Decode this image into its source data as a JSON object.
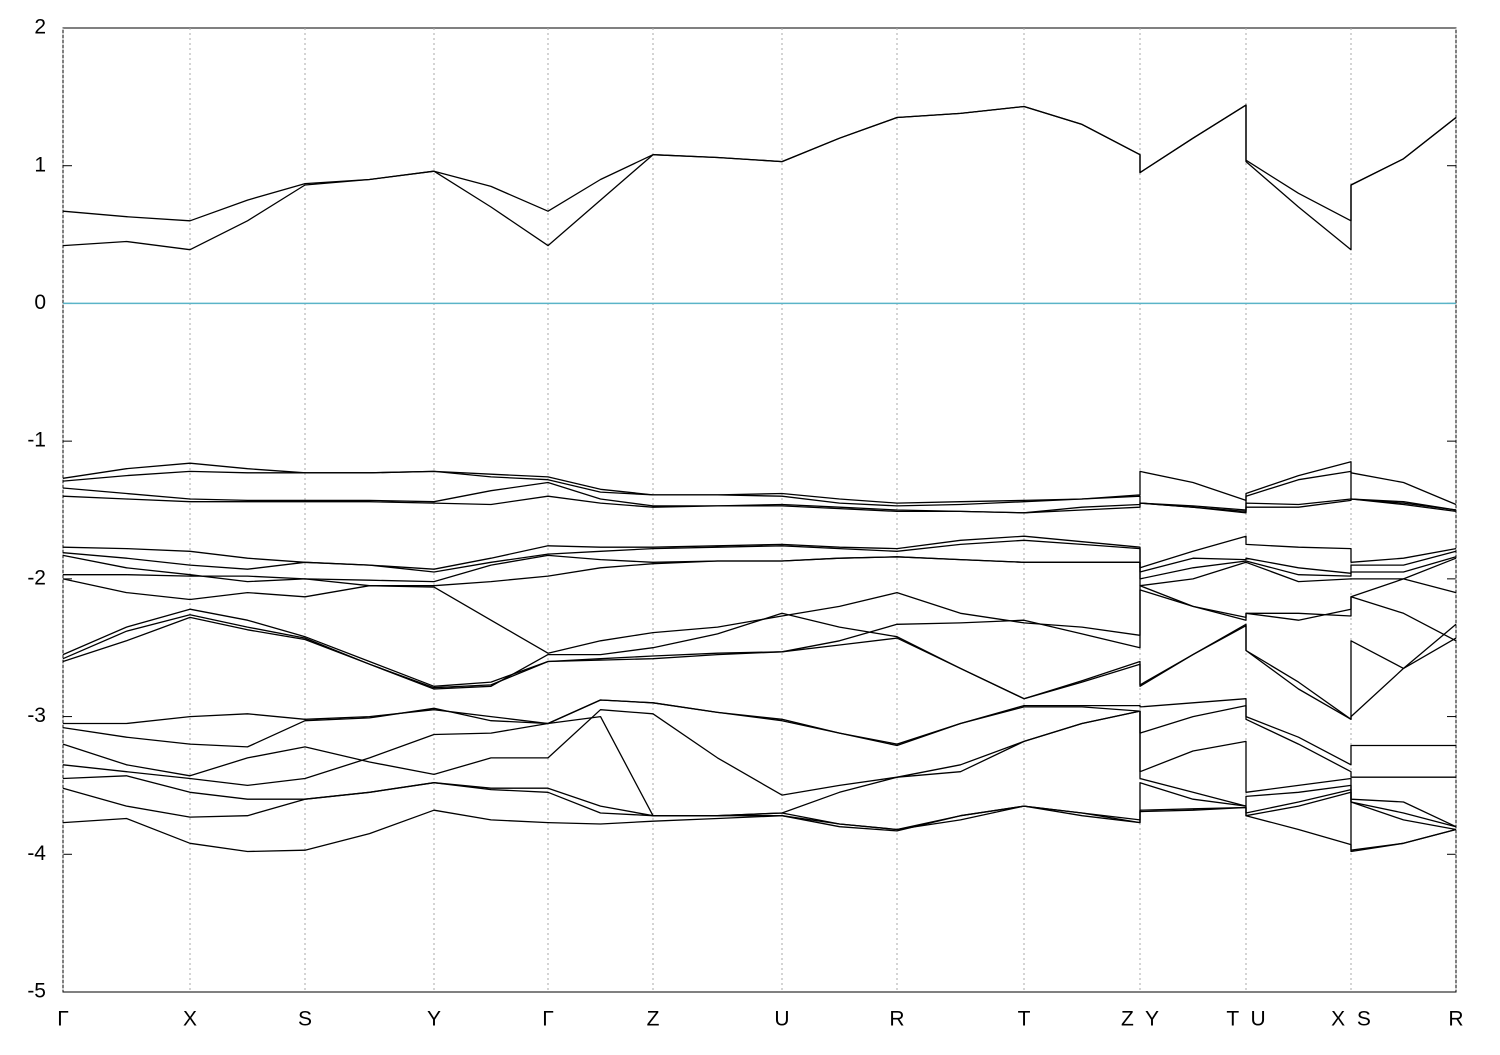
{
  "chart_data": {
    "type": "line",
    "xlim": [
      0,
      13.93
    ],
    "ylim": [
      -5,
      2
    ],
    "yticks": [
      -5,
      -4,
      -3,
      -2,
      -1,
      0,
      1,
      2
    ],
    "xticks": [
      {
        "value": 0,
        "label": "Γ"
      },
      {
        "value": 1.27,
        "label": "X"
      },
      {
        "value": 2.42,
        "label": "S"
      },
      {
        "value": 3.71,
        "label": "Y"
      },
      {
        "value": 4.85,
        "label": "Γ"
      },
      {
        "value": 5.9,
        "label": "Z"
      },
      {
        "value": 7.19,
        "label": "U"
      },
      {
        "value": 8.34,
        "label": "R"
      },
      {
        "value": 9.61,
        "label": "T"
      },
      {
        "value": 10.77,
        "label": "Z  Y"
      },
      {
        "value": 11.83,
        "label": "T  U"
      },
      {
        "value": 12.88,
        "label": "X  S"
      },
      {
        "value": 13.93,
        "label": "R"
      }
    ],
    "grid": "x",
    "hlines": [
      {
        "y": 0,
        "color": "#5ab4c8"
      }
    ],
    "x": [
      0,
      0.635,
      1.27,
      1.845,
      2.42,
      3.065,
      3.71,
      4.28,
      4.85,
      5.375,
      5.9,
      6.545,
      7.19,
      7.765,
      8.34,
      8.975,
      9.61,
      10.19,
      10.77,
      10.77,
      11.3,
      11.83,
      11.83,
      12.355,
      12.88,
      12.88,
      13.405,
      13.93
    ],
    "series": [
      {
        "color": "#000000",
        "values": [
          0.67,
          0.63,
          0.6,
          0.75,
          0.87,
          0.9,
          0.96,
          0.85,
          0.67,
          0.9,
          1.08,
          1.06,
          1.03,
          1.2,
          1.35,
          1.38,
          1.43,
          1.3,
          1.08,
          0.95,
          1.2,
          1.44,
          1.04,
          0.8,
          0.6,
          0.86,
          1.05,
          1.35
        ]
      },
      {
        "color": "#000000",
        "values": [
          0.42,
          0.45,
          0.39,
          0.6,
          0.86,
          0.9,
          0.96,
          0.7,
          0.42,
          0.75,
          1.08,
          1.06,
          1.03,
          1.2,
          1.35,
          1.38,
          1.43,
          1.3,
          1.08,
          0.95,
          1.2,
          1.44,
          1.03,
          0.7,
          0.39,
          0.86,
          1.05,
          1.35
        ]
      },
      {
        "color": "#000000",
        "values": [
          -1.27,
          -1.2,
          -1.16,
          -1.2,
          -1.23,
          -1.23,
          -1.22,
          -1.24,
          -1.26,
          -1.35,
          -1.39,
          -1.39,
          -1.38,
          -1.42,
          -1.45,
          -1.44,
          -1.43,
          -1.42,
          -1.39,
          -1.22,
          -1.3,
          -1.43,
          -1.38,
          -1.25,
          -1.15,
          -1.23,
          -1.3,
          -1.46
        ]
      },
      {
        "color": "#000000",
        "values": [
          -1.29,
          -1.25,
          -1.22,
          -1.23,
          -1.23,
          -1.23,
          -1.22,
          -1.26,
          -1.28,
          -1.37,
          -1.39,
          -1.39,
          -1.4,
          -1.45,
          -1.47,
          -1.46,
          -1.44,
          -1.42,
          -1.4,
          -1.45,
          -1.47,
          -1.5,
          -1.4,
          -1.28,
          -1.22,
          -1.42,
          -1.45,
          -1.5
        ]
      },
      {
        "color": "#000000",
        "values": [
          -1.34,
          -1.38,
          -1.42,
          -1.43,
          -1.43,
          -1.43,
          -1.44,
          -1.36,
          -1.3,
          -1.42,
          -1.47,
          -1.47,
          -1.46,
          -1.48,
          -1.5,
          -1.51,
          -1.52,
          -1.48,
          -1.46,
          -1.45,
          -1.48,
          -1.51,
          -1.45,
          -1.46,
          -1.42,
          -1.42,
          -1.44,
          -1.5
        ]
      },
      {
        "color": "#000000",
        "values": [
          -1.4,
          -1.42,
          -1.44,
          -1.44,
          -1.44,
          -1.44,
          -1.45,
          -1.46,
          -1.4,
          -1.45,
          -1.48,
          -1.47,
          -1.47,
          -1.49,
          -1.51,
          -1.51,
          -1.52,
          -1.5,
          -1.48,
          -1.45,
          -1.48,
          -1.52,
          -1.48,
          -1.48,
          -1.43,
          -1.42,
          -1.46,
          -1.51
        ]
      },
      {
        "color": "#000000",
        "values": [
          -1.77,
          -1.78,
          -1.8,
          -1.85,
          -1.88,
          -1.9,
          -1.93,
          -1.85,
          -1.76,
          -1.77,
          -1.77,
          -1.76,
          -1.75,
          -1.77,
          -1.78,
          -1.72,
          -1.69,
          -1.73,
          -1.77,
          -1.92,
          -1.8,
          -1.69,
          -1.75,
          -1.77,
          -1.78,
          -1.88,
          -1.85,
          -1.78
        ]
      },
      {
        "color": "#000000",
        "values": [
          -1.81,
          -1.85,
          -1.9,
          -1.93,
          -1.88,
          -1.9,
          -1.95,
          -1.88,
          -1.82,
          -1.8,
          -1.78,
          -1.77,
          -1.76,
          -1.78,
          -1.8,
          -1.75,
          -1.72,
          -1.75,
          -1.78,
          -1.95,
          -1.85,
          -1.86,
          -1.85,
          -1.92,
          -1.96,
          -1.9,
          -1.9,
          -1.8
        ]
      },
      {
        "color": "#000000",
        "values": [
          -1.83,
          -1.92,
          -1.97,
          -2.02,
          -2.0,
          -2.01,
          -2.02,
          -1.9,
          -1.83,
          -1.86,
          -1.88,
          -1.87,
          -1.87,
          -1.85,
          -1.84,
          -1.86,
          -1.88,
          -1.88,
          -1.88,
          -2.0,
          -1.92,
          -1.87,
          -1.87,
          -1.97,
          -1.98,
          -1.95,
          -1.95,
          -1.84
        ]
      },
      {
        "color": "#000000",
        "values": [
          -1.97,
          -1.97,
          -1.98,
          -1.98,
          -2.0,
          -2.05,
          -2.05,
          -2.02,
          -1.98,
          -1.92,
          -1.89,
          -1.87,
          -1.87,
          -1.85,
          -1.84,
          -1.86,
          -1.88,
          -1.88,
          -1.88,
          -2.05,
          -2.0,
          -1.88,
          -1.88,
          -2.02,
          -2.0,
          -2.0,
          -2.0,
          -1.85
        ]
      },
      {
        "color": "#000000",
        "values": [
          -2.0,
          -2.1,
          -2.15,
          -2.1,
          -2.13,
          -2.05,
          -2.06,
          -2.3,
          -2.54,
          -2.45,
          -2.39,
          -2.35,
          -2.27,
          -2.2,
          -2.1,
          -2.25,
          -2.32,
          -2.35,
          -2.41,
          -2.05,
          -2.2,
          -2.28,
          -2.25,
          -2.25,
          -2.27,
          -2.13,
          -2.0,
          -2.1
        ]
      },
      {
        "color": "#000000",
        "values": [
          -2.55,
          -2.35,
          -2.22,
          -2.3,
          -2.42,
          -2.6,
          -2.78,
          -2.75,
          -2.6,
          -2.58,
          -2.56,
          -2.54,
          -2.53,
          -2.45,
          -2.33,
          -2.32,
          -2.3,
          -2.4,
          -2.5,
          -2.08,
          -2.2,
          -2.3,
          -2.25,
          -2.3,
          -2.22,
          -2.13,
          -2.25,
          -2.45
        ]
      },
      {
        "color": "#000000",
        "values": [
          -2.58,
          -2.38,
          -2.26,
          -2.35,
          -2.43,
          -2.62,
          -2.79,
          -2.77,
          -2.6,
          -2.59,
          -2.58,
          -2.55,
          -2.53,
          -2.48,
          -2.43,
          -2.65,
          -2.87,
          -2.75,
          -2.62,
          -2.77,
          -2.55,
          -2.33,
          -2.52,
          -2.75,
          -3.02,
          -3.0,
          -2.65,
          -2.43
        ]
      },
      {
        "color": "#000000",
        "values": [
          -2.6,
          -2.45,
          -2.28,
          -2.37,
          -2.44,
          -2.62,
          -2.8,
          -2.78,
          -2.55,
          -2.55,
          -2.5,
          -2.4,
          -2.25,
          -2.35,
          -2.42,
          -2.65,
          -2.87,
          -2.74,
          -2.6,
          -2.78,
          -2.55,
          -2.34,
          -2.52,
          -2.8,
          -3.02,
          -2.45,
          -2.65,
          -2.33
        ]
      },
      {
        "color": "#000000",
        "values": [
          -3.05,
          -3.05,
          -3.0,
          -2.98,
          -3.02,
          -3.0,
          -2.95,
          -3.0,
          -3.05,
          -2.88,
          -2.9,
          -2.97,
          -3.02,
          -3.12,
          -3.2,
          -3.05,
          -2.92,
          -2.92,
          -2.92,
          -2.93,
          -2.9,
          -2.87,
          -3.0,
          -3.15,
          -3.35,
          -3.21,
          -3.21,
          -3.21
        ]
      },
      {
        "color": "#000000",
        "values": [
          -3.08,
          -3.15,
          -3.2,
          -3.22,
          -3.03,
          -3.01,
          -2.94,
          -3.03,
          -3.05,
          -2.88,
          -2.9,
          -2.97,
          -3.03,
          -3.12,
          -3.21,
          -3.05,
          -2.93,
          -2.93,
          -2.96,
          -3.12,
          -3.0,
          -2.92,
          -3.02,
          -3.2,
          -3.4,
          -3.44,
          -3.44,
          -3.44
        ]
      },
      {
        "color": "#000000",
        "values": [
          -3.2,
          -3.35,
          -3.43,
          -3.3,
          -3.22,
          -3.33,
          -3.42,
          -3.3,
          -3.3,
          -2.95,
          -2.98,
          -3.3,
          -3.57,
          -3.5,
          -3.44,
          -3.35,
          -3.18,
          -3.05,
          -2.96,
          -3.4,
          -3.25,
          -3.18,
          -3.55,
          -3.5,
          -3.45,
          -3.6,
          -3.62,
          -3.8
        ]
      },
      {
        "color": "#000000",
        "values": [
          -3.35,
          -3.4,
          -3.45,
          -3.5,
          -3.45,
          -3.3,
          -3.13,
          -3.12,
          -3.05,
          -3.0,
          -3.72,
          -3.72,
          -3.7,
          -3.55,
          -3.44,
          -3.4,
          -3.18,
          -3.05,
          -2.96,
          -3.45,
          -3.55,
          -3.65,
          -3.58,
          -3.55,
          -3.5,
          -3.62,
          -3.7,
          -3.8
        ]
      },
      {
        "color": "#000000",
        "values": [
          -3.45,
          -3.43,
          -3.55,
          -3.6,
          -3.6,
          -3.55,
          -3.48,
          -3.52,
          -3.52,
          -3.65,
          -3.72,
          -3.72,
          -3.7,
          -3.78,
          -3.82,
          -3.75,
          -3.65,
          -3.7,
          -3.75,
          -3.48,
          -3.6,
          -3.65,
          -3.7,
          -3.62,
          -3.53,
          -3.62,
          -3.75,
          -3.82
        ]
      },
      {
        "color": "#000000",
        "values": [
          -3.52,
          -3.65,
          -3.73,
          -3.72,
          -3.6,
          -3.55,
          -3.48,
          -3.53,
          -3.55,
          -3.7,
          -3.72,
          -3.72,
          -3.72,
          -3.8,
          -3.83,
          -3.72,
          -3.65,
          -3.7,
          -3.77,
          -3.68,
          -3.67,
          -3.66,
          -3.72,
          -3.65,
          -3.55,
          -3.97,
          -3.92,
          -3.82
        ]
      },
      {
        "color": "#000000",
        "values": [
          -3.77,
          -3.74,
          -3.92,
          -3.98,
          -3.97,
          -3.85,
          -3.68,
          -3.75,
          -3.77,
          -3.78,
          -3.76,
          -3.74,
          -3.72,
          -3.78,
          -3.82,
          -3.72,
          -3.65,
          -3.72,
          -3.77,
          -3.69,
          -3.68,
          -3.66,
          -3.72,
          -3.82,
          -3.93,
          -3.98,
          -3.92,
          -3.82
        ]
      }
    ]
  }
}
